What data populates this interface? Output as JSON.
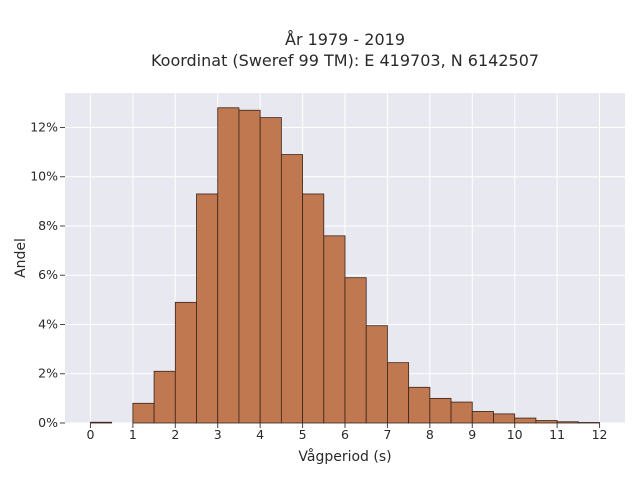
{
  "chart_data": {
    "type": "bar",
    "title": "År 1979 - 2019",
    "subtitle": "Koordinat (Sweref 99 TM): E 419703, N 6142507",
    "xlabel": "Vågperiod (s)",
    "ylabel": "Andel",
    "xlim": [
      -0.6,
      12.6
    ],
    "ylim": [
      0,
      13.4
    ],
    "x_ticks": [
      0,
      1,
      2,
      3,
      4,
      5,
      6,
      7,
      8,
      9,
      10,
      11,
      12
    ],
    "y_ticks": [
      0,
      2,
      4,
      6,
      8,
      10,
      12
    ],
    "y_tick_labels": [
      "0%",
      "2%",
      "4%",
      "6%",
      "8%",
      "10%",
      "12%"
    ],
    "bin_width": 0.5,
    "bins": [
      {
        "start": 0.0,
        "value": 0.03
      },
      {
        "start": 0.5,
        "value": 0.0
      },
      {
        "start": 1.0,
        "value": 0.8
      },
      {
        "start": 1.5,
        "value": 2.1
      },
      {
        "start": 2.0,
        "value": 4.9
      },
      {
        "start": 2.5,
        "value": 9.3
      },
      {
        "start": 3.0,
        "value": 12.8
      },
      {
        "start": 3.5,
        "value": 12.7
      },
      {
        "start": 4.0,
        "value": 12.4
      },
      {
        "start": 4.5,
        "value": 10.9
      },
      {
        "start": 5.0,
        "value": 9.3
      },
      {
        "start": 5.5,
        "value": 7.6
      },
      {
        "start": 6.0,
        "value": 5.9
      },
      {
        "start": 6.5,
        "value": 3.95
      },
      {
        "start": 7.0,
        "value": 2.45
      },
      {
        "start": 7.5,
        "value": 1.45
      },
      {
        "start": 8.0,
        "value": 1.0
      },
      {
        "start": 8.5,
        "value": 0.85
      },
      {
        "start": 9.0,
        "value": 0.47
      },
      {
        "start": 9.5,
        "value": 0.37
      },
      {
        "start": 10.0,
        "value": 0.2
      },
      {
        "start": 10.5,
        "value": 0.1
      },
      {
        "start": 11.0,
        "value": 0.05
      },
      {
        "start": 11.5,
        "value": 0.02
      }
    ],
    "grid": true,
    "colors": {
      "bar_fill": "#c07850",
      "bar_edge": "#3a2418",
      "plot_background": "#e8e8f0",
      "grid": "#ffffff"
    }
  }
}
